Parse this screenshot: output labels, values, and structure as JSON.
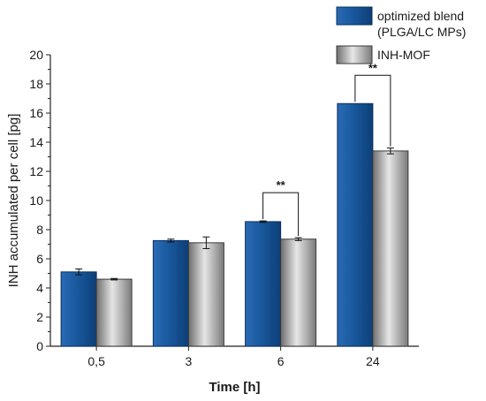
{
  "chart_data": {
    "type": "bar",
    "categories": [
      "0,5",
      "3",
      "6",
      "24"
    ],
    "series": [
      {
        "name": "optimized blend\n(PLGA/LC MPs)",
        "values": [
          5.1,
          7.25,
          8.55,
          16.65
        ],
        "errors": [
          0.2,
          0.1,
          0.05,
          0.0
        ],
        "color": "#1a5aa0"
      },
      {
        "name": "INH-MOF",
        "values": [
          4.6,
          7.1,
          7.35,
          13.4
        ],
        "errors": [
          0.05,
          0.4,
          0.1,
          0.2
        ],
        "color": "#9a9a9a"
      }
    ],
    "xlabel": "Time [h]",
    "ylabel": "INH accumulated per cell [pg]",
    "ylim": [
      0,
      20
    ],
    "yticks": [
      "0",
      "2",
      "4",
      "6",
      "8",
      "10",
      "12",
      "14",
      "16",
      "18",
      "20"
    ],
    "significance": [
      {
        "category_index": 2,
        "label": "**"
      },
      {
        "category_index": 3,
        "label": "**"
      }
    ],
    "legend_position": "top-right",
    "grid": false
  }
}
